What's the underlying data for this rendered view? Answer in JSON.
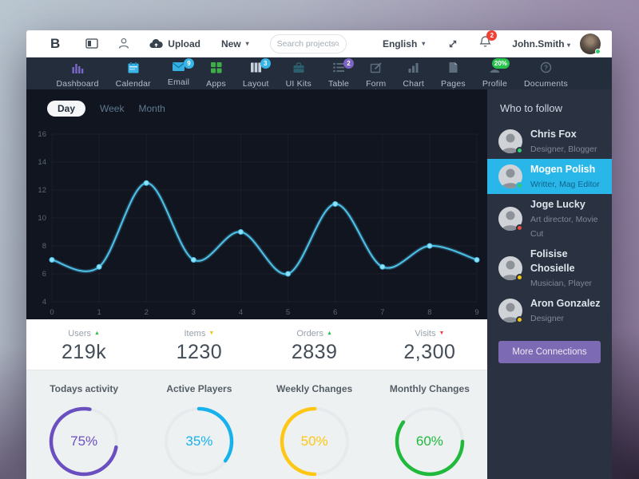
{
  "navbar": {
    "logo": "B",
    "upload_label": "Upload",
    "new_label": "New",
    "search_placeholder": "Search projects...",
    "language": "English",
    "notifications_count": "2",
    "user_name": "John.Smith"
  },
  "nav": {
    "items": [
      {
        "label": "Dashboard",
        "icon": "bar-chart-icon",
        "badge": ""
      },
      {
        "label": "Calendar",
        "icon": "calendar-icon",
        "badge": ""
      },
      {
        "label": "Email",
        "icon": "envelope-icon",
        "badge": "9"
      },
      {
        "label": "Apps",
        "icon": "grid-icon",
        "badge": ""
      },
      {
        "label": "Layout",
        "icon": "columns-icon",
        "badge": "3"
      },
      {
        "label": "UI Kits",
        "icon": "briefcase-icon",
        "badge": ""
      },
      {
        "label": "Table",
        "icon": "list-icon",
        "badge": "2"
      },
      {
        "label": "Form",
        "icon": "edit-icon",
        "badge": ""
      },
      {
        "label": "Chart",
        "icon": "chart-icon",
        "badge": ""
      },
      {
        "label": "Pages",
        "icon": "file-icon",
        "badge": ""
      },
      {
        "label": "Profile",
        "icon": "person-icon",
        "badge": "20%"
      },
      {
        "label": "Documents",
        "icon": "help-icon",
        "badge": ""
      }
    ]
  },
  "chart": {
    "tabs": {
      "day": "Day",
      "week": "Week",
      "month": "Month"
    },
    "active_tab": "Day"
  },
  "chart_data": {
    "type": "line",
    "x": [
      0,
      1,
      2,
      3,
      4,
      5,
      6,
      7,
      8,
      9
    ],
    "values": [
      7,
      6.5,
      12.5,
      7,
      9,
      6,
      11,
      6.5,
      8,
      7
    ],
    "title": "",
    "xlabel": "",
    "ylabel": "",
    "ylim": [
      4,
      16
    ],
    "yticks": [
      4,
      6,
      8,
      10,
      12,
      14,
      16
    ],
    "xticks": [
      0,
      1,
      2,
      3,
      4,
      5,
      6,
      7,
      8,
      9
    ],
    "grid": true,
    "legend": false,
    "line_color": "#4ec3ec",
    "point_color": "#8ee2f9",
    "background": "#11151f"
  },
  "stats": [
    {
      "label": "Users",
      "value": "219k",
      "arrow": "▲",
      "arrow_color": "#27c24c"
    },
    {
      "label": "Items",
      "value": "1230",
      "arrow": "▼",
      "arrow_color": "#f1c40f"
    },
    {
      "label": "Orders",
      "value": "2839",
      "arrow": "▲",
      "arrow_color": "#27c24c"
    },
    {
      "label": "Visits",
      "value": "2,300",
      "arrow": "▼",
      "arrow_color": "#ef4136"
    }
  ],
  "gauges": [
    {
      "label": "Todays activity",
      "percent": 75,
      "display": "75%",
      "color": "#6a4fc0"
    },
    {
      "label": "Active Players",
      "percent": 35,
      "display": "35%",
      "color": "#17b2ec"
    },
    {
      "label": "Weekly Changes",
      "percent": 50,
      "display": "50%",
      "color": "#fdc714"
    },
    {
      "label": "Monthly Changes",
      "percent": 60,
      "display": "60%",
      "color": "#1fb93c"
    }
  ],
  "follow": {
    "title": "Who to follow",
    "users": [
      {
        "name": "Chris Fox",
        "role": "Designer, Blogger",
        "status_color": "#2ecc71",
        "selected": false
      },
      {
        "name": "Mogen Polish",
        "role": "Writter, Mag Editor",
        "status_color": "#2ecc71",
        "selected": true
      },
      {
        "name": "Joge Lucky",
        "role": "Art director, Movie Cut",
        "status_color": "#e74c3c",
        "selected": false
      },
      {
        "name": "Folisise Chosielle",
        "role": "Musician, Player",
        "status_color": "#f1c40f",
        "selected": false
      },
      {
        "name": "Aron Gonzalez",
        "role": "Designer",
        "status_color": "#f1c40f",
        "selected": false
      }
    ],
    "button": "More Connections"
  }
}
